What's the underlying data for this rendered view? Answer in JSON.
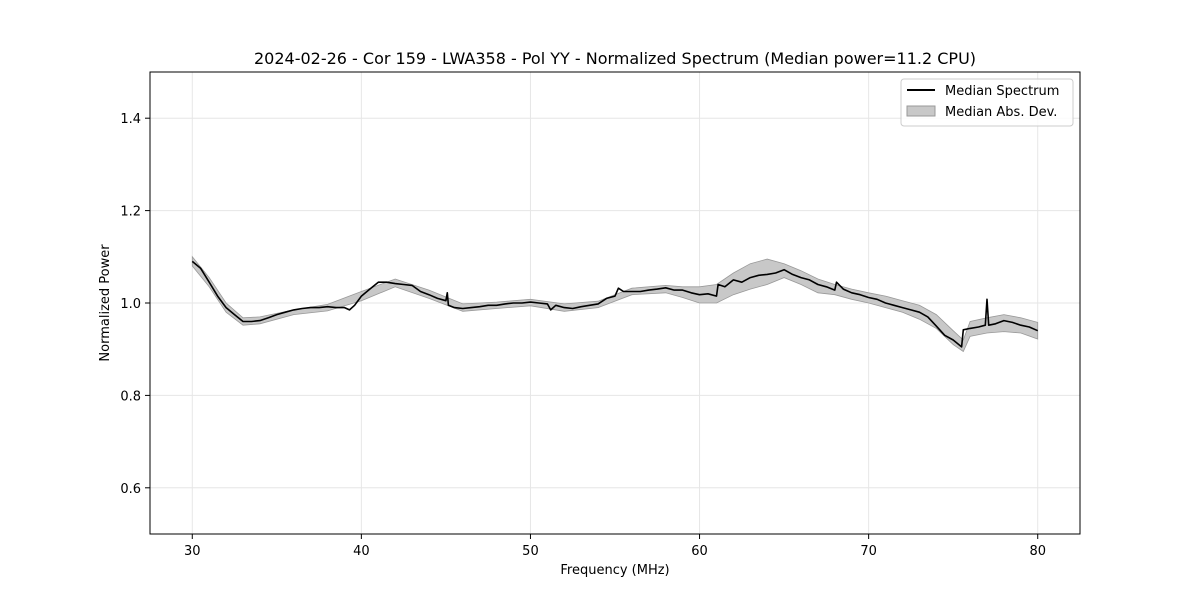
{
  "chart_data": {
    "type": "line",
    "title": "2024-02-26 - Cor 159 - LWA358 - Pol YY - Normalized Spectrum (Median power=11.2 CPU)",
    "xlabel": "Frequency (MHz)",
    "ylabel": "Normalized Power",
    "xlim": [
      27.5,
      82.5
    ],
    "ylim": [
      0.5,
      1.5
    ],
    "xticks": [
      30,
      40,
      50,
      60,
      70,
      80
    ],
    "yticks": [
      0.6,
      0.8,
      1.0,
      1.2,
      1.4
    ],
    "xtick_labels": [
      "30",
      "40",
      "50",
      "60",
      "70",
      "80"
    ],
    "ytick_labels": [
      "0.6",
      "0.8",
      "1.0",
      "1.2",
      "1.4"
    ],
    "grid": true,
    "legend_position": "top-right",
    "legend": [
      "Median Spectrum",
      "Median Abs. Dev."
    ],
    "colors": {
      "line": "#000000",
      "band": "#c8c8c8",
      "band_edge": "#999999",
      "grid": "#e6e6e6"
    },
    "series": [
      {
        "name": "Median Spectrum",
        "x": [
          30.0,
          30.5,
          31.0,
          31.5,
          32.0,
          32.5,
          33.0,
          33.5,
          34.0,
          34.5,
          35.0,
          35.5,
          36.0,
          36.5,
          37.0,
          37.5,
          38.0,
          38.5,
          39.0,
          39.3,
          39.6,
          40.0,
          40.5,
          41.0,
          41.5,
          42.0,
          42.5,
          43.0,
          43.5,
          44.0,
          44.5,
          45.0,
          45.08,
          45.15,
          45.5,
          46.0,
          46.5,
          47.0,
          47.5,
          48.0,
          48.5,
          49.0,
          49.5,
          50.0,
          50.5,
          51.0,
          51.2,
          51.5,
          52.0,
          52.5,
          53.0,
          53.5,
          54.0,
          54.5,
          55.0,
          55.2,
          55.5,
          56.0,
          56.5,
          57.0,
          57.5,
          58.0,
          58.5,
          59.0,
          59.5,
          60.0,
          60.5,
          61.0,
          61.1,
          61.5,
          62.0,
          62.5,
          63.0,
          63.5,
          64.0,
          64.5,
          65.0,
          65.5,
          66.0,
          66.5,
          67.0,
          67.5,
          68.0,
          68.1,
          68.5,
          69.0,
          69.5,
          70.0,
          70.5,
          71.0,
          71.5,
          72.0,
          72.5,
          73.0,
          73.5,
          74.0,
          74.5,
          75.0,
          75.5,
          75.6,
          76.0,
          76.5,
          76.9,
          77.0,
          77.1,
          77.5,
          78.0,
          78.5,
          79.0,
          79.5,
          80.0
        ],
        "values": [
          1.09,
          1.075,
          1.045,
          1.015,
          0.99,
          0.975,
          0.96,
          0.96,
          0.962,
          0.968,
          0.975,
          0.98,
          0.985,
          0.988,
          0.99,
          0.99,
          0.992,
          0.99,
          0.99,
          0.985,
          0.995,
          1.015,
          1.03,
          1.045,
          1.045,
          1.042,
          1.04,
          1.038,
          1.025,
          1.018,
          1.01,
          1.005,
          1.022,
          0.995,
          0.99,
          0.988,
          0.99,
          0.992,
          0.995,
          0.995,
          0.998,
          1.0,
          1.0,
          1.002,
          1.0,
          0.998,
          0.985,
          0.995,
          0.99,
          0.988,
          0.992,
          0.995,
          0.998,
          1.01,
          1.015,
          1.032,
          1.025,
          1.025,
          1.025,
          1.028,
          1.03,
          1.033,
          1.028,
          1.028,
          1.022,
          1.018,
          1.02,
          1.015,
          1.04,
          1.035,
          1.05,
          1.045,
          1.055,
          1.06,
          1.062,
          1.065,
          1.072,
          1.062,
          1.055,
          1.05,
          1.04,
          1.035,
          1.028,
          1.045,
          1.03,
          1.022,
          1.018,
          1.012,
          1.008,
          1.0,
          0.995,
          0.99,
          0.985,
          0.98,
          0.97,
          0.95,
          0.93,
          0.92,
          0.905,
          0.942,
          0.945,
          0.948,
          0.952,
          1.008,
          0.952,
          0.955,
          0.962,
          0.958,
          0.952,
          0.948,
          0.94
        ]
      },
      {
        "name": "Median Abs. Dev.",
        "x": [
          30.0,
          31.0,
          32.0,
          33.0,
          34.0,
          36.0,
          38.0,
          40.0,
          42.0,
          44.0,
          46.0,
          48.0,
          50.0,
          52.0,
          54.0,
          56.0,
          58.0,
          59.0,
          60.0,
          61.0,
          62.0,
          63.0,
          64.0,
          65.0,
          66.0,
          67.0,
          68.0,
          69.0,
          70.0,
          71.0,
          72.0,
          73.0,
          74.0,
          75.0,
          75.6,
          76.0,
          77.0,
          78.0,
          79.0,
          80.0
        ],
        "lower": [
          1.08,
          1.035,
          0.98,
          0.952,
          0.955,
          0.975,
          0.983,
          1.005,
          1.035,
          1.01,
          0.982,
          0.988,
          0.994,
          0.982,
          0.99,
          1.018,
          1.022,
          1.012,
          1.0,
          1.0,
          1.018,
          1.03,
          1.04,
          1.055,
          1.04,
          1.022,
          1.018,
          1.008,
          1.0,
          0.99,
          0.98,
          0.965,
          0.945,
          0.91,
          0.895,
          0.928,
          0.935,
          0.938,
          0.935,
          0.922
        ],
        "upper": [
          1.1,
          1.055,
          1.0,
          0.968,
          0.97,
          0.985,
          0.997,
          1.025,
          1.052,
          1.028,
          0.998,
          1.002,
          1.008,
          0.998,
          1.004,
          1.032,
          1.038,
          1.035,
          1.035,
          1.04,
          1.065,
          1.085,
          1.095,
          1.085,
          1.07,
          1.052,
          1.04,
          1.03,
          1.022,
          1.015,
          1.005,
          0.995,
          0.975,
          0.94,
          0.92,
          0.96,
          0.968,
          0.975,
          0.968,
          0.958
        ]
      }
    ]
  }
}
